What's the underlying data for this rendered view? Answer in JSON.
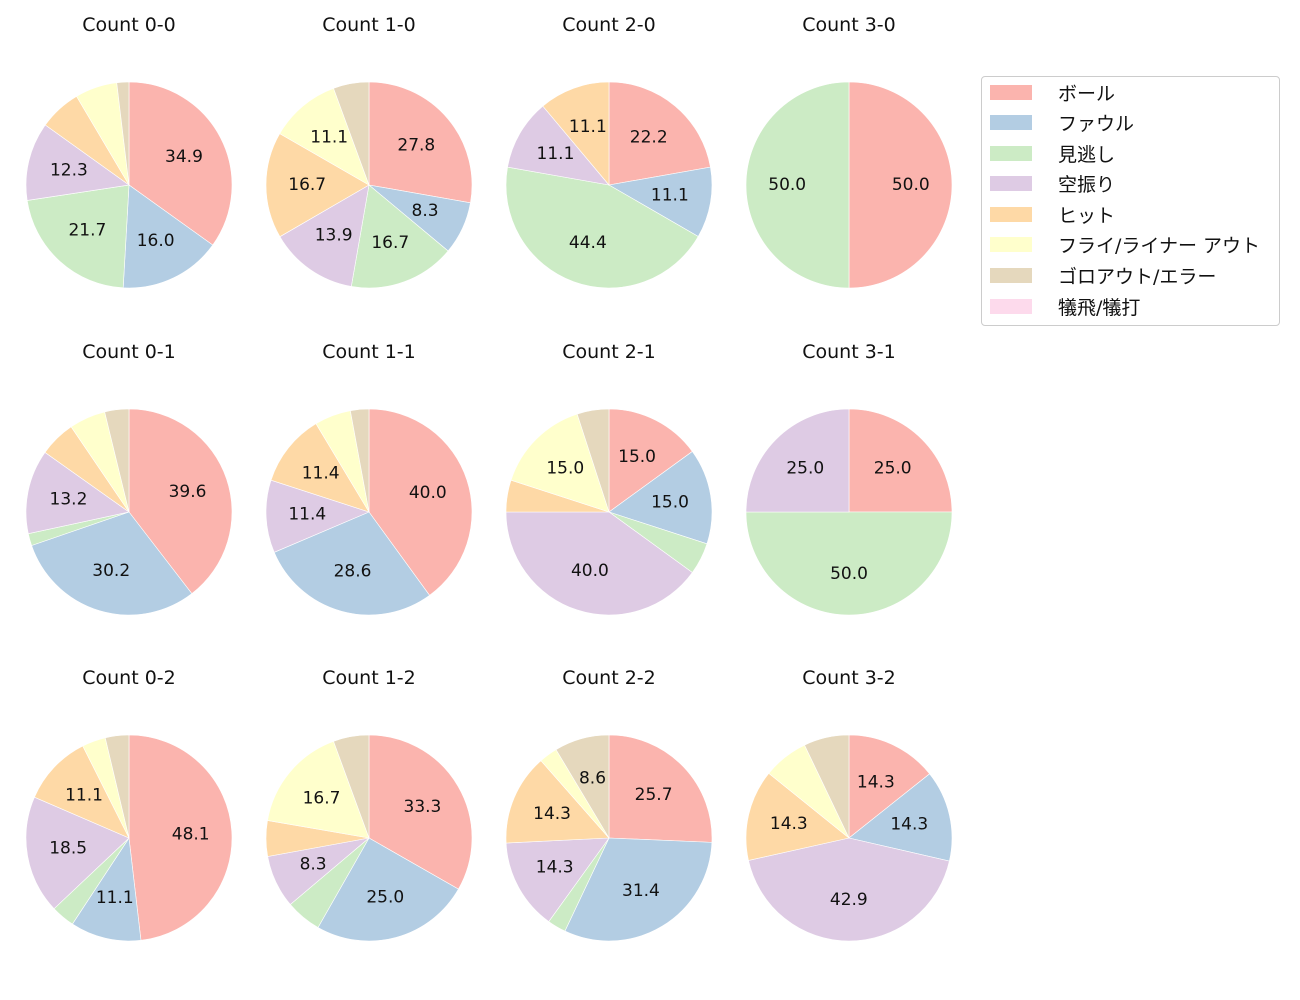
{
  "chart_data": {
    "type": "pie",
    "layout": {
      "rows": 3,
      "cols": 4,
      "legend_position": "right",
      "start_angle": 90,
      "direction": "clockwise"
    },
    "categories": [
      "ボール",
      "ファウル",
      "見逃し",
      "空振り",
      "ヒット",
      "フライ/ライナー アウト",
      "ゴロアウト/エラー",
      "犠飛/犠打"
    ],
    "colors": [
      "#fbb4ae",
      "#b3cde3",
      "#ccebc5",
      "#decbe4",
      "#fed9a6",
      "#ffffcc",
      "#e5d8bd",
      "#fddaec"
    ],
    "charts": [
      {
        "title": "Count 0-0",
        "values": [
          34.9,
          16.0,
          21.7,
          12.3,
          6.6,
          6.6,
          1.9,
          0
        ],
        "labels": [
          "34.9",
          "16.0",
          "21.7",
          "12.3",
          "",
          "",
          "",
          ""
        ]
      },
      {
        "title": "Count 1-0",
        "values": [
          27.8,
          8.3,
          16.7,
          13.9,
          16.7,
          11.1,
          5.6,
          0
        ],
        "labels": [
          "27.8",
          "8.3",
          "16.7",
          "13.9",
          "16.7",
          "11.1",
          "",
          ""
        ]
      },
      {
        "title": "Count 2-0",
        "values": [
          22.2,
          11.1,
          44.4,
          11.1,
          11.1,
          0,
          0,
          0
        ],
        "labels": [
          "22.2",
          "11.1",
          "44.4",
          "11.1",
          "11.1",
          "",
          "",
          ""
        ]
      },
      {
        "title": "Count 3-0",
        "values": [
          50.0,
          0,
          50.0,
          0,
          0,
          0,
          0,
          0
        ],
        "labels": [
          "50.0",
          "",
          "50.0",
          "",
          "",
          "",
          "",
          ""
        ]
      },
      {
        "title": "Count 0-1",
        "values": [
          39.6,
          30.2,
          1.9,
          13.2,
          5.7,
          5.7,
          3.8,
          0
        ],
        "labels": [
          "39.6",
          "30.2",
          "",
          "13.2",
          "",
          "",
          "",
          ""
        ]
      },
      {
        "title": "Count 1-1",
        "values": [
          40.0,
          28.6,
          0,
          11.4,
          11.4,
          5.7,
          2.9,
          0
        ],
        "labels": [
          "40.0",
          "28.6",
          "",
          "11.4",
          "11.4",
          "",
          "",
          ""
        ]
      },
      {
        "title": "Count 2-1",
        "values": [
          15.0,
          15.0,
          5.0,
          40.0,
          5.0,
          15.0,
          5.0,
          0
        ],
        "labels": [
          "15.0",
          "15.0",
          "",
          "40.0",
          "",
          "15.0",
          "",
          ""
        ]
      },
      {
        "title": "Count 3-1",
        "values": [
          25.0,
          0,
          50.0,
          25.0,
          0,
          0,
          0,
          0
        ],
        "labels": [
          "25.0",
          "",
          "50.0",
          "25.0",
          "",
          "",
          "",
          ""
        ]
      },
      {
        "title": "Count 0-2",
        "values": [
          48.1,
          11.1,
          3.7,
          18.5,
          11.1,
          3.7,
          3.7,
          0
        ],
        "labels": [
          "48.1",
          "11.1",
          "",
          "18.5",
          "11.1",
          "",
          "",
          ""
        ]
      },
      {
        "title": "Count 1-2",
        "values": [
          33.3,
          25.0,
          5.6,
          8.3,
          5.6,
          16.7,
          5.6,
          0
        ],
        "labels": [
          "33.3",
          "25.0",
          "",
          "8.3",
          "",
          "16.7",
          "",
          ""
        ]
      },
      {
        "title": "Count 2-2",
        "values": [
          25.7,
          31.4,
          2.9,
          14.3,
          14.3,
          2.9,
          8.6,
          0
        ],
        "labels": [
          "25.7",
          "31.4",
          "",
          "14.3",
          "14.3",
          "",
          "8.6",
          ""
        ]
      },
      {
        "title": "Count 3-2",
        "values": [
          14.3,
          14.3,
          0,
          42.9,
          14.3,
          7.1,
          7.1,
          0
        ],
        "labels": [
          "14.3",
          "14.3",
          "",
          "42.9",
          "14.3",
          "",
          "",
          ""
        ]
      }
    ]
  },
  "legend": {
    "items": [
      {
        "label": "ボール",
        "color": "#fbb4ae"
      },
      {
        "label": "ファウル",
        "color": "#b3cde3"
      },
      {
        "label": "見逃し",
        "color": "#ccebc5"
      },
      {
        "label": "空振り",
        "color": "#decbe4"
      },
      {
        "label": "ヒット",
        "color": "#fed9a6"
      },
      {
        "label": "フライ/ライナー アウト",
        "color": "#ffffcc"
      },
      {
        "label": "ゴロアウト/エラー",
        "color": "#e5d8bd"
      },
      {
        "label": "犠飛/犠打",
        "color": "#fddaec"
      }
    ]
  }
}
